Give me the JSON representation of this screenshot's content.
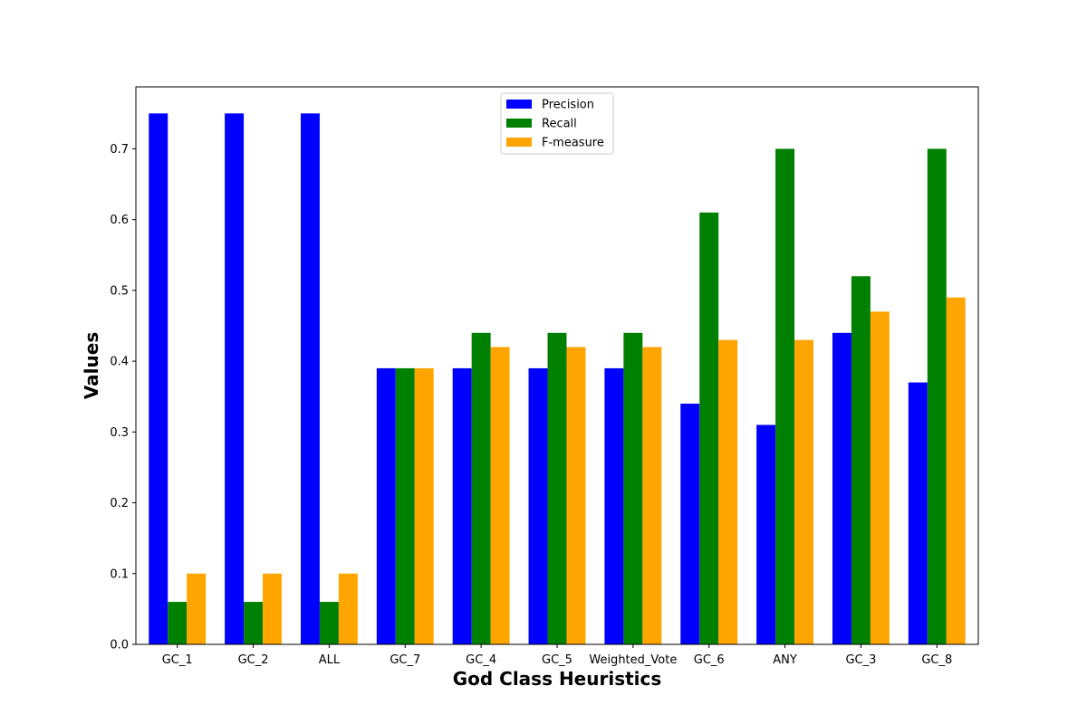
{
  "chart_data": {
    "type": "bar",
    "title": "",
    "xlabel": "God Class Heuristics",
    "ylabel": "Values",
    "categories": [
      "GC_1",
      "GC_2",
      "ALL",
      "GC_7",
      "GC_4",
      "GC_5",
      "Weighted_Vote",
      "GC_6",
      "ANY",
      "GC_3",
      "GC_8"
    ],
    "series": [
      {
        "name": "Precision",
        "color": "#0000ff",
        "values": [
          0.75,
          0.75,
          0.75,
          0.39,
          0.39,
          0.39,
          0.39,
          0.34,
          0.31,
          0.44,
          0.37
        ]
      },
      {
        "name": "Recall",
        "color": "#008000",
        "values": [
          0.06,
          0.06,
          0.06,
          0.39,
          0.44,
          0.44,
          0.44,
          0.61,
          0.7,
          0.52,
          0.7
        ]
      },
      {
        "name": "F-measure",
        "color": "#ffa500",
        "values": [
          0.1,
          0.1,
          0.1,
          0.39,
          0.42,
          0.42,
          0.42,
          0.43,
          0.43,
          0.47,
          0.49
        ]
      }
    ],
    "ylim": [
      0,
      0.7875
    ],
    "yticks": [
      "0.0",
      "0.1",
      "0.2",
      "0.3",
      "0.4",
      "0.5",
      "0.6",
      "0.7"
    ],
    "legend_position": "top-center",
    "grid": false
  }
}
